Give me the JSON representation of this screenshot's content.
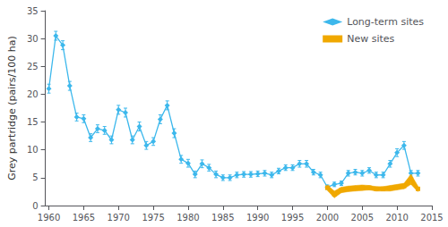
{
  "chart_data": {
    "type": "line",
    "ylabel": "Grey partridge (pairs/100 ha)",
    "xlim": [
      1959.5,
      2015
    ],
    "ylim": [
      0,
      35
    ],
    "xticks": [
      1960,
      1965,
      1970,
      1975,
      1980,
      1985,
      1990,
      1995,
      2000,
      2005,
      2010,
      2015
    ],
    "yticks": [
      0,
      5,
      10,
      15,
      20,
      25,
      30,
      35
    ],
    "grid": false,
    "legend": "upper right",
    "series": [
      {
        "name": "Long-term sites",
        "color": "#3DB8EC",
        "marker": "diamond",
        "x": [
          1960,
          1961,
          1962,
          1963,
          1964,
          1965,
          1966,
          1967,
          1968,
          1969,
          1970,
          1971,
          1972,
          1973,
          1974,
          1975,
          1976,
          1977,
          1978,
          1979,
          1980,
          1981,
          1982,
          1983,
          1984,
          1985,
          1986,
          1987,
          1988,
          1989,
          1990,
          1991,
          1992,
          1993,
          1994,
          1995,
          1996,
          1997,
          1998,
          1999,
          2000,
          2001,
          2002,
          2003,
          2004,
          2005,
          2006,
          2007,
          2008,
          2009,
          2010,
          2011,
          2012,
          2013
        ],
        "values": [
          21.0,
          30.5,
          28.8,
          21.5,
          15.9,
          15.6,
          12.2,
          13.8,
          13.5,
          11.8,
          17.2,
          16.7,
          11.8,
          14.2,
          10.8,
          11.5,
          15.5,
          18.0,
          13.0,
          8.3,
          7.6,
          5.6,
          7.5,
          6.8,
          5.6,
          5.0,
          5.0,
          5.5,
          5.6,
          5.6,
          5.7,
          5.8,
          5.5,
          6.2,
          6.8,
          6.8,
          7.5,
          7.5,
          6.0,
          5.5,
          3.3,
          3.8,
          4.0,
          5.8,
          6.0,
          5.8,
          6.3,
          5.5,
          5.5,
          7.5,
          9.5,
          10.8,
          5.8,
          5.8
        ],
        "err": [
          0.8,
          0.8,
          0.8,
          0.8,
          0.7,
          0.7,
          0.7,
          0.7,
          0.7,
          0.7,
          0.8,
          0.8,
          0.7,
          0.8,
          0.7,
          0.7,
          0.8,
          0.8,
          0.8,
          0.7,
          0.7,
          0.6,
          0.7,
          0.6,
          0.6,
          0.5,
          0.5,
          0.5,
          0.5,
          0.5,
          0.5,
          0.5,
          0.5,
          0.5,
          0.5,
          0.5,
          0.6,
          0.6,
          0.5,
          0.5,
          0.4,
          0.4,
          0.4,
          0.5,
          0.5,
          0.5,
          0.5,
          0.5,
          0.5,
          0.6,
          0.7,
          0.7,
          0.5,
          0.5
        ]
      },
      {
        "name": "New sites",
        "color": "#F0A800",
        "marker": "square",
        "x": [
          2000,
          2001,
          2002,
          2003,
          2004,
          2005,
          2006,
          2007,
          2008,
          2009,
          2010,
          2011,
          2012,
          2013
        ],
        "values": [
          3.2,
          2.0,
          2.8,
          3.0,
          3.1,
          3.2,
          3.2,
          3.0,
          3.0,
          3.1,
          3.3,
          3.5,
          4.7,
          3.0
        ],
        "err_low": [
          0.5,
          0.6,
          0.5,
          0.5,
          0.5,
          0.5,
          0.4,
          0.4,
          0.4,
          0.5,
          0.5,
          0.5,
          0.9,
          0.5
        ],
        "err_high": [
          0.5,
          0.6,
          0.5,
          0.5,
          0.5,
          0.5,
          0.4,
          0.4,
          0.4,
          0.5,
          0.5,
          0.5,
          0.9,
          0.5
        ]
      }
    ]
  }
}
